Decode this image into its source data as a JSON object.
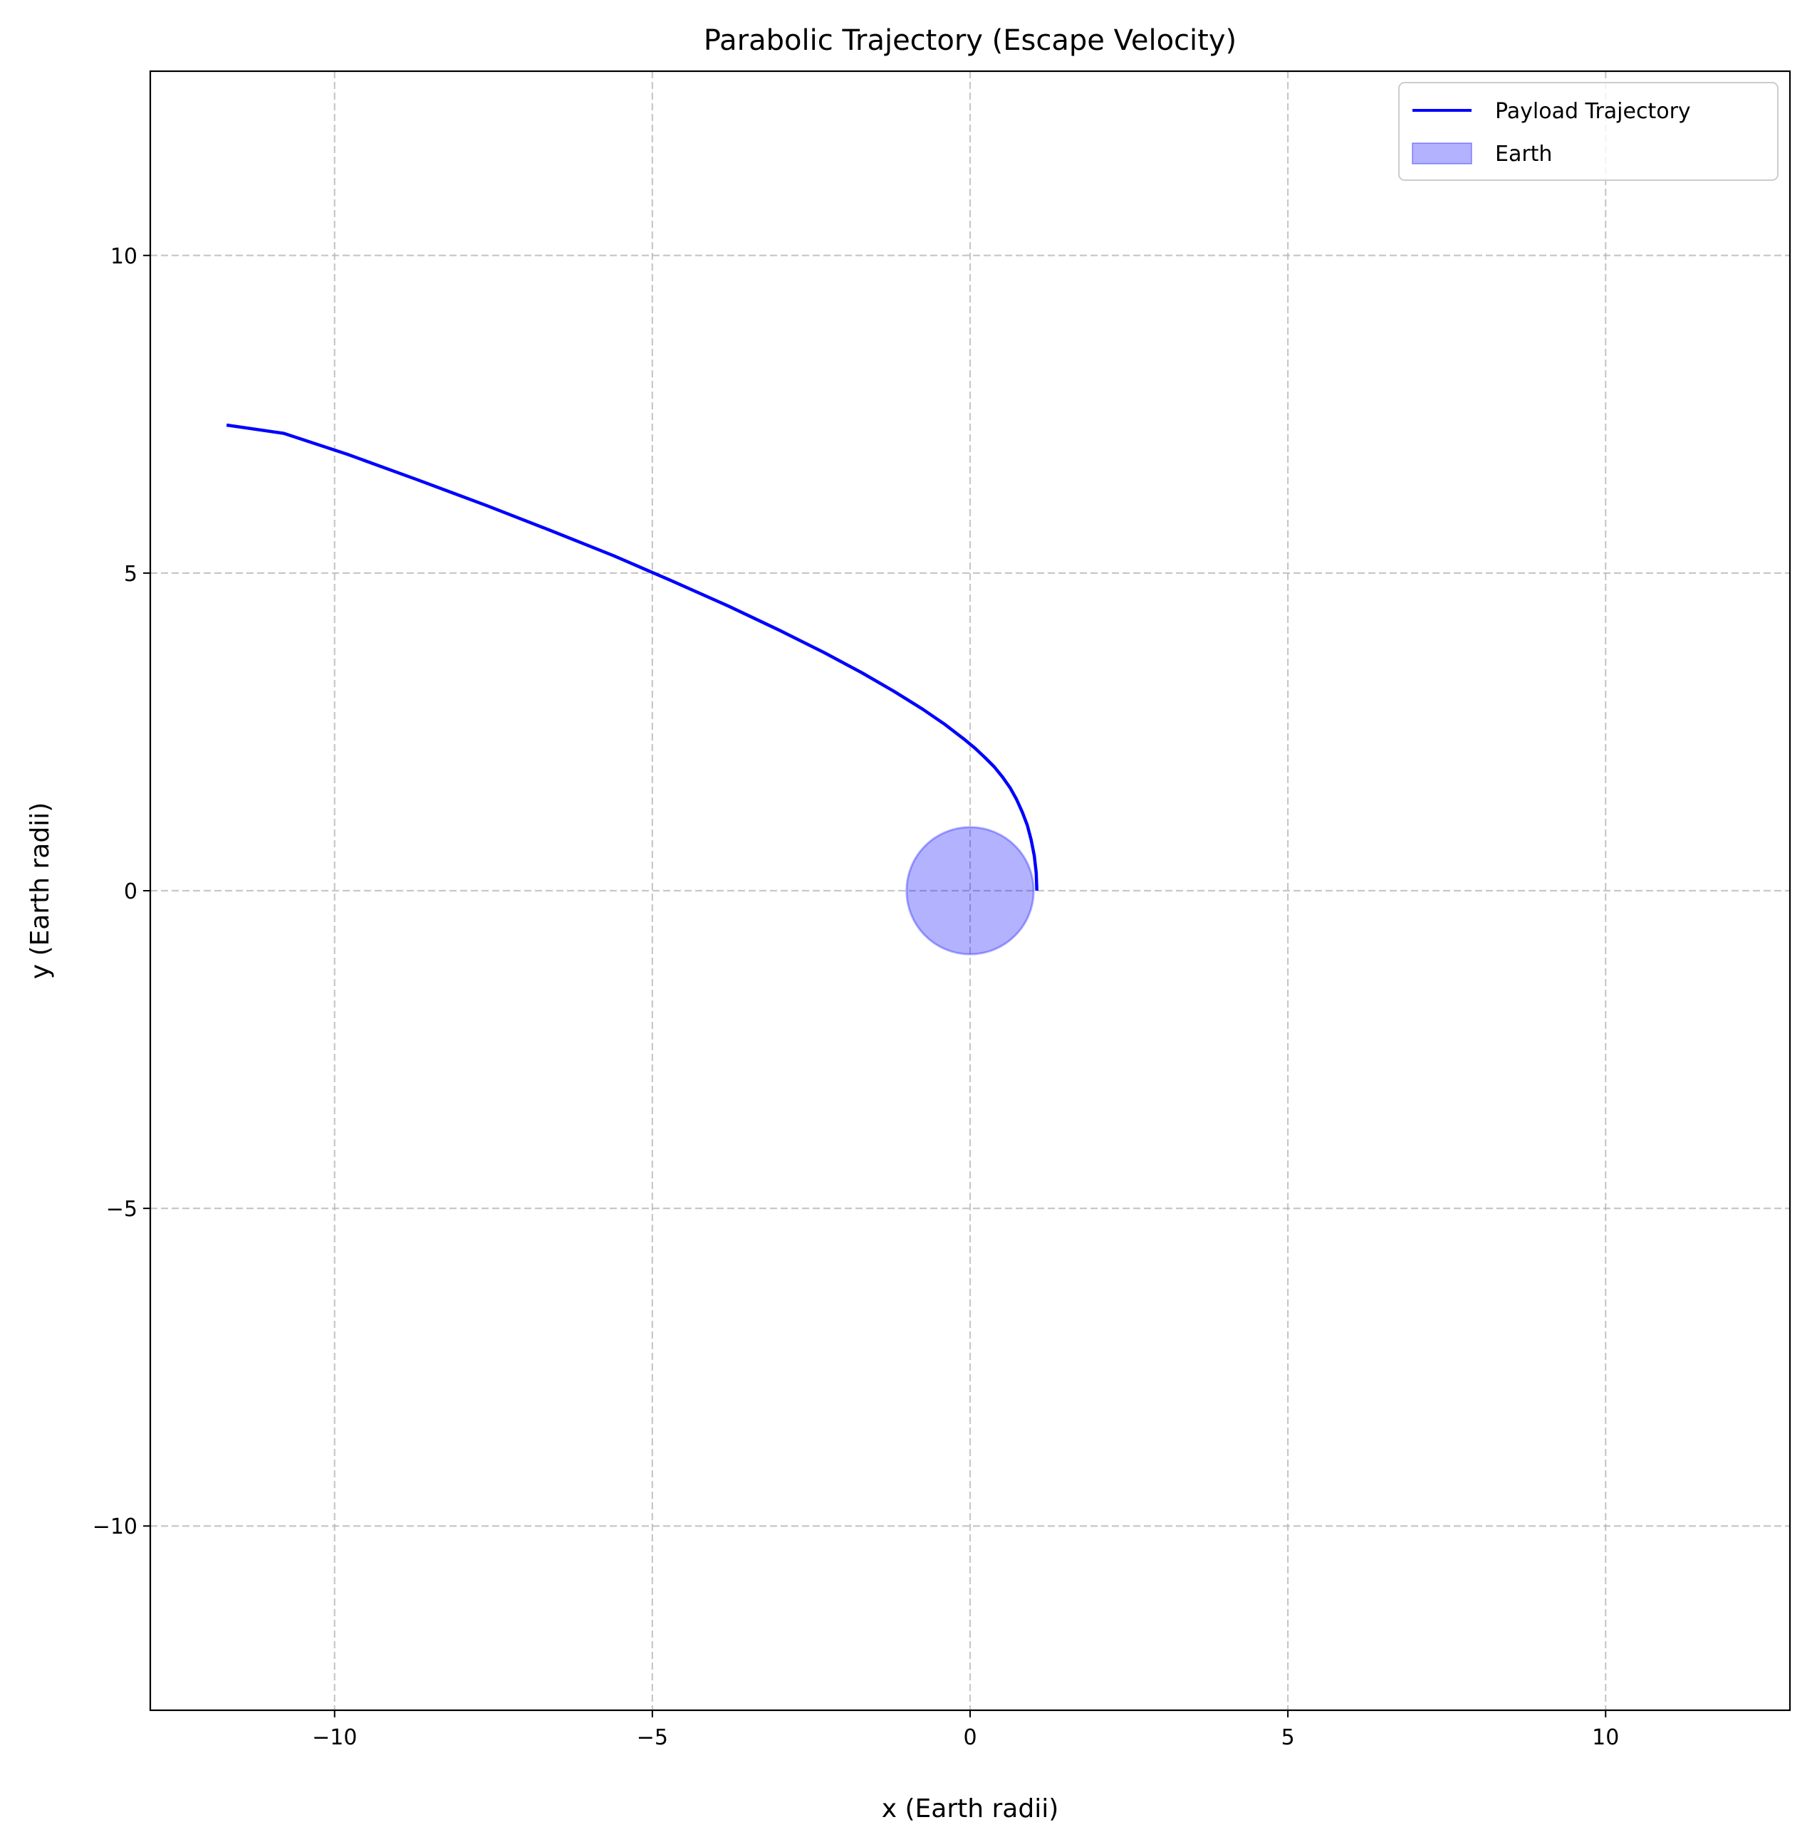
{
  "chart_data": {
    "type": "line",
    "title": "Parabolic Trajectory (Escape Velocity)",
    "xlabel": "x (Earth radii)",
    "ylabel": "y (Earth radii)",
    "xlim": [
      -12.9,
      12.9
    ],
    "ylim": [
      -12.9,
      12.9
    ],
    "grid": true,
    "legend_position": "top-right",
    "x_ticks": [
      -10,
      -5,
      0,
      5,
      10
    ],
    "x_tick_labels": [
      "−10",
      "−5",
      "0",
      "5",
      "10"
    ],
    "y_ticks": [
      -10,
      -5,
      0,
      5,
      10
    ],
    "y_tick_labels": [
      "−10",
      "−5",
      "0",
      "5",
      "10"
    ],
    "series": [
      {
        "name": "Payload Trajectory",
        "kind": "line",
        "color": "#0000ff",
        "x": [
          1.05,
          1.04,
          1.01,
          0.96,
          0.9,
          0.82,
          0.73,
          0.63,
          0.51,
          0.38,
          0.23,
          0.07,
          -0.1,
          -0.4,
          -0.75,
          -1.2,
          -1.7,
          -2.3,
          -3.0,
          -3.8,
          -4.7,
          -5.6,
          -6.6,
          -7.6,
          -8.7,
          -9.8,
          -10.8,
          -11.7
        ],
        "y": [
          0.0,
          0.28,
          0.55,
          0.8,
          1.03,
          1.24,
          1.44,
          1.62,
          1.79,
          1.95,
          2.1,
          2.25,
          2.39,
          2.62,
          2.86,
          3.14,
          3.43,
          3.75,
          4.1,
          4.48,
          4.88,
          5.27,
          5.67,
          6.06,
          6.47,
          6.87,
          7.2,
          7.33
        ]
      },
      {
        "name": "Earth",
        "kind": "circle",
        "center": [
          0,
          0
        ],
        "radius": 1.0,
        "fill": "#0000ff",
        "fill_opacity": 0.3
      }
    ]
  }
}
